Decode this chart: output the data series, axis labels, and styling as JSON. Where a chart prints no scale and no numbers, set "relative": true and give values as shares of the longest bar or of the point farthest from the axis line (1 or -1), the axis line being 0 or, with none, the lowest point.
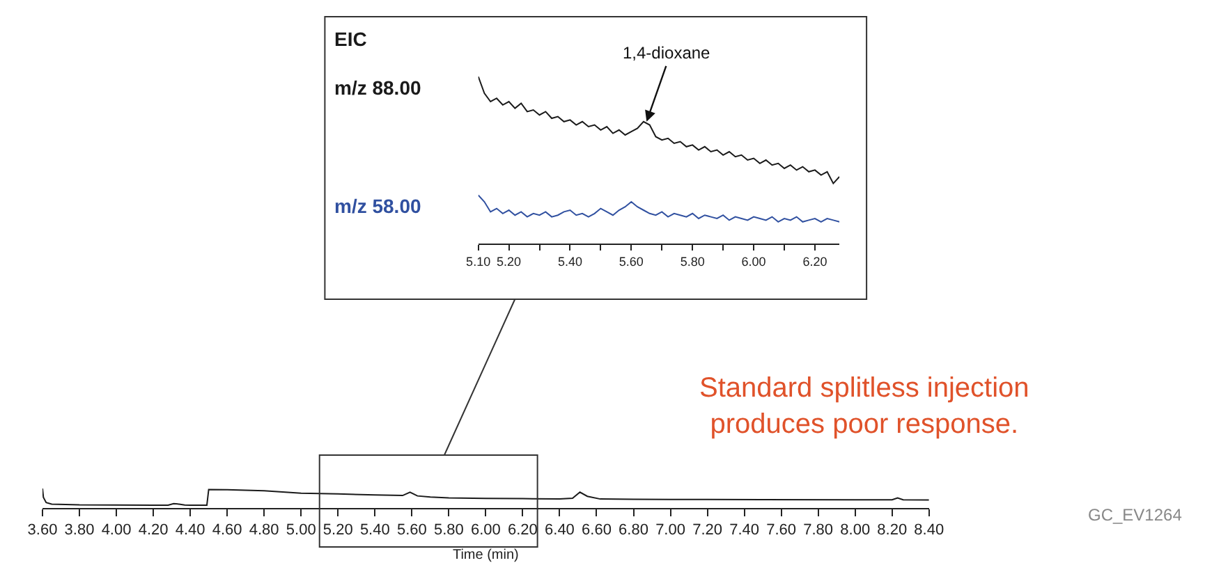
{
  "chart_data": [
    {
      "type": "line",
      "title": "EIC",
      "relative": true,
      "legend": false,
      "tick_labels": "x",
      "xlim": [
        5.1,
        6.28
      ],
      "xticks": [
        {
          "value": 5.1,
          "label": "5.10"
        },
        {
          "value": 5.2,
          "label": "5.20"
        },
        {
          "value": 5.3,
          "label": null
        },
        {
          "value": 5.4,
          "label": "5.40"
        },
        {
          "value": 5.5,
          "label": null
        },
        {
          "value": 5.6,
          "label": "5.60"
        },
        {
          "value": 5.7,
          "label": null
        },
        {
          "value": 5.8,
          "label": "5.80"
        },
        {
          "value": 5.9,
          "label": null
        },
        {
          "value": 6.0,
          "label": "6.00"
        },
        {
          "value": 6.1,
          "label": null
        },
        {
          "value": 6.2,
          "label": "6.20"
        }
      ],
      "x": [
        5.1,
        5.12,
        5.14,
        5.16,
        5.18,
        5.2,
        5.22,
        5.24,
        5.26,
        5.28,
        5.3,
        5.32,
        5.34,
        5.36,
        5.38,
        5.4,
        5.42,
        5.44,
        5.46,
        5.48,
        5.5,
        5.52,
        5.54,
        5.56,
        5.58,
        5.6,
        5.62,
        5.64,
        5.66,
        5.68,
        5.7,
        5.72,
        5.74,
        5.76,
        5.78,
        5.8,
        5.82,
        5.84,
        5.86,
        5.88,
        5.9,
        5.92,
        5.94,
        5.96,
        5.98,
        6.0,
        6.02,
        6.04,
        6.06,
        6.08,
        6.1,
        6.12,
        6.14,
        6.16,
        6.18,
        6.2,
        6.22,
        6.24,
        6.26,
        6.28
      ],
      "series": [
        {
          "name": "m/z 88.00",
          "color": "#1a1a1a",
          "values": [
            1.0,
            0.9,
            0.85,
            0.87,
            0.83,
            0.85,
            0.81,
            0.84,
            0.79,
            0.8,
            0.77,
            0.79,
            0.75,
            0.76,
            0.73,
            0.74,
            0.71,
            0.73,
            0.7,
            0.71,
            0.68,
            0.7,
            0.66,
            0.68,
            0.65,
            0.67,
            0.69,
            0.73,
            0.71,
            0.64,
            0.62,
            0.63,
            0.6,
            0.61,
            0.58,
            0.59,
            0.56,
            0.58,
            0.55,
            0.56,
            0.53,
            0.55,
            0.52,
            0.53,
            0.5,
            0.51,
            0.48,
            0.5,
            0.47,
            0.48,
            0.45,
            0.47,
            0.44,
            0.46,
            0.43,
            0.44,
            0.41,
            0.43,
            0.36,
            0.4
          ]
        },
        {
          "name": "m/z 58.00",
          "color": "#3050a0",
          "values": [
            0.29,
            0.25,
            0.19,
            0.21,
            0.18,
            0.2,
            0.17,
            0.19,
            0.16,
            0.18,
            0.17,
            0.19,
            0.16,
            0.17,
            0.19,
            0.2,
            0.17,
            0.18,
            0.16,
            0.18,
            0.21,
            0.19,
            0.17,
            0.2,
            0.22,
            0.25,
            0.22,
            0.2,
            0.18,
            0.17,
            0.19,
            0.16,
            0.18,
            0.17,
            0.16,
            0.18,
            0.15,
            0.17,
            0.16,
            0.15,
            0.17,
            0.14,
            0.16,
            0.15,
            0.14,
            0.16,
            0.15,
            0.14,
            0.16,
            0.13,
            0.15,
            0.14,
            0.16,
            0.13,
            0.14,
            0.15,
            0.13,
            0.15,
            0.14,
            0.13
          ]
        }
      ],
      "annotations": [
        {
          "text": "1,4-dioxane",
          "x": 5.65,
          "y": 0.73
        }
      ]
    },
    {
      "type": "line",
      "relative": true,
      "legend": false,
      "tick_labels": "x",
      "xlabel": "Time (min)",
      "xlim": [
        3.6,
        8.4
      ],
      "xticks": [
        {
          "value": 3.6,
          "label": "3.60"
        },
        {
          "value": 3.8,
          "label": "3.80"
        },
        {
          "value": 4.0,
          "label": "4.00"
        },
        {
          "value": 4.2,
          "label": "4.20"
        },
        {
          "value": 4.4,
          "label": "4.40"
        },
        {
          "value": 4.6,
          "label": "4.60"
        },
        {
          "value": 4.8,
          "label": "4.80"
        },
        {
          "value": 5.0,
          "label": "5.00"
        },
        {
          "value": 5.2,
          "label": "5.20"
        },
        {
          "value": 5.4,
          "label": "5.40"
        },
        {
          "value": 5.6,
          "label": "5.60"
        },
        {
          "value": 5.8,
          "label": "5.80"
        },
        {
          "value": 6.0,
          "label": "6.00"
        },
        {
          "value": 6.2,
          "label": "6.20"
        },
        {
          "value": 6.4,
          "label": "6.40"
        },
        {
          "value": 6.6,
          "label": "6.60"
        },
        {
          "value": 6.8,
          "label": "6.80"
        },
        {
          "value": 7.0,
          "label": "7.00"
        },
        {
          "value": 7.2,
          "label": "7.20"
        },
        {
          "value": 7.4,
          "label": "7.40"
        },
        {
          "value": 7.6,
          "label": "7.60"
        },
        {
          "value": 7.8,
          "label": "7.80"
        },
        {
          "value": 8.0,
          "label": "8.00"
        },
        {
          "value": 8.2,
          "label": "8.20"
        },
        {
          "value": 8.4,
          "label": "8.40"
        }
      ],
      "x": [
        3.6,
        3.605,
        3.62,
        3.65,
        3.8,
        4.0,
        4.2,
        4.28,
        4.31,
        4.34,
        4.37,
        4.4,
        4.49,
        4.5,
        4.6,
        4.8,
        5.0,
        5.2,
        5.4,
        5.55,
        5.59,
        5.63,
        5.7,
        5.8,
        6.0,
        6.2,
        6.4,
        6.47,
        6.51,
        6.55,
        6.62,
        6.8,
        7.0,
        7.5,
        8.0,
        8.2,
        8.23,
        8.26,
        8.4
      ],
      "series": [
        {
          "color": "#1a1a1a",
          "values": [
            1.0,
            0.55,
            0.28,
            0.2,
            0.16,
            0.15,
            0.14,
            0.14,
            0.22,
            0.2,
            0.15,
            0.14,
            0.14,
            0.95,
            0.94,
            0.88,
            0.76,
            0.72,
            0.67,
            0.64,
            0.81,
            0.62,
            0.56,
            0.52,
            0.49,
            0.48,
            0.46,
            0.5,
            0.81,
            0.6,
            0.46,
            0.45,
            0.44,
            0.43,
            0.42,
            0.42,
            0.52,
            0.42,
            0.41
          ]
        }
      ],
      "annotations": [
        "Standard splitless injection\nproduces poor response.",
        "GC_EV1264"
      ]
    }
  ]
}
